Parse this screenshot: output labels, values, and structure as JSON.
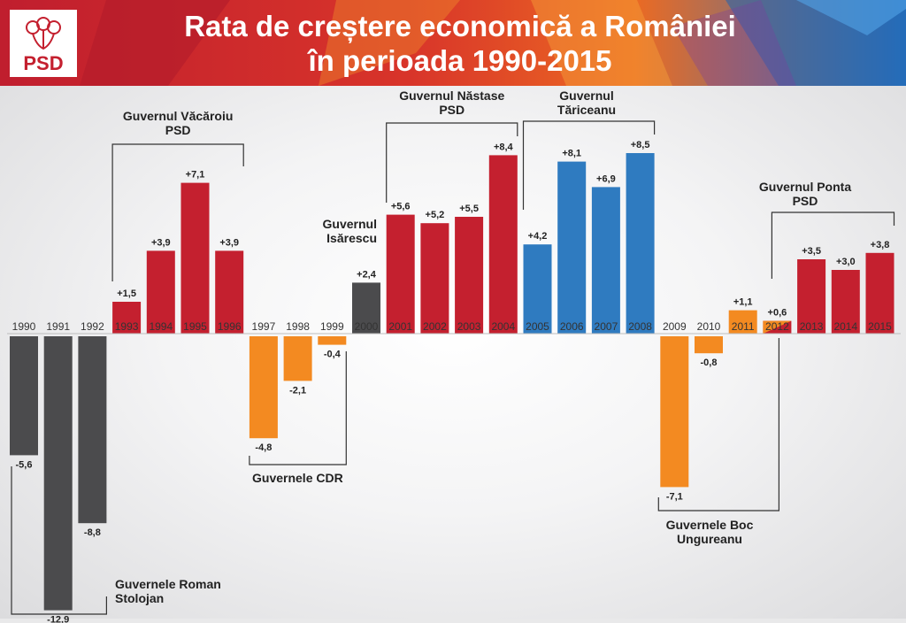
{
  "title": {
    "line1": "Rata de creștere economică a României",
    "line2": "în perioada 1990-2015"
  },
  "logo": {
    "text": "PSD",
    "icon": "rose-icon"
  },
  "colors": {
    "red": "#c4202f",
    "blue": "#2f7bc0",
    "orange": "#f38a21",
    "gray": "#4b4b4d",
    "header_red": "#c4202f"
  },
  "chart_data": {
    "type": "bar",
    "title": "Rata de creștere economică a României în perioada 1990-2015",
    "categories": [
      "1990",
      "1991",
      "1992",
      "1993",
      "1994",
      "1995",
      "1996",
      "1997",
      "1998",
      "1999",
      "2000",
      "2001",
      "2002",
      "2003",
      "2004",
      "2005",
      "2006",
      "2007",
      "2008",
      "2009",
      "2010",
      "2011",
      "2012",
      "2013",
      "2014",
      "2015"
    ],
    "values": [
      -5.6,
      -12.9,
      -8.8,
      1.5,
      3.9,
      7.1,
      3.9,
      -4.8,
      -2.1,
      -0.4,
      2.4,
      5.6,
      5.2,
      5.5,
      8.4,
      4.2,
      8.1,
      6.9,
      8.5,
      -7.1,
      -0.8,
      1.1,
      0.6,
      3.5,
      3.0,
      3.8
    ],
    "value_labels": [
      "-5,6",
      "-12,9",
      "-8,8",
      "+1,5",
      "+3,9",
      "+7,1",
      "+3,9",
      "-4,8",
      "-2,1",
      "-0,4",
      "+2,4",
      "+5,6",
      "+5,2",
      "+5,5",
      "+8,4",
      "+4,2",
      "+8,1",
      "+6,9",
      "+8,5",
      "-7,1",
      "-0,8",
      "+1,1",
      "+0,6",
      "+3,5",
      "+3,0",
      "+3,8"
    ],
    "bar_colors": [
      "gray",
      "gray",
      "gray",
      "red",
      "red",
      "red",
      "red",
      "orange",
      "orange",
      "orange",
      "gray",
      "red",
      "red",
      "red",
      "red",
      "blue",
      "blue",
      "blue",
      "blue",
      "orange",
      "orange",
      "orange",
      "split",
      "red",
      "red",
      "red"
    ],
    "groups": [
      {
        "label": "Guvernele Roman\nStolojan",
        "from": "1990",
        "to": "1992"
      },
      {
        "label": "Guvernul Văcăroiu\nPSD",
        "from": "1993",
        "to": "1996"
      },
      {
        "label": "Guvernele CDR",
        "from": "1997",
        "to": "1999"
      },
      {
        "label": "Guvernul\nIsărescu",
        "from": "2000",
        "to": "2000"
      },
      {
        "label": "Guvernul Năstase\nPSD",
        "from": "2001",
        "to": "2004"
      },
      {
        "label": "Guvernul\nTăriceanu",
        "from": "2005",
        "to": "2008"
      },
      {
        "label": "Guvernele Boc\nUngureanu",
        "from": "2009",
        "to": "2012"
      },
      {
        "label": "Guvernul Ponta\nPSD",
        "from": "2012",
        "to": "2015"
      }
    ],
    "xlabel": "",
    "ylabel": "",
    "grid": false
  }
}
